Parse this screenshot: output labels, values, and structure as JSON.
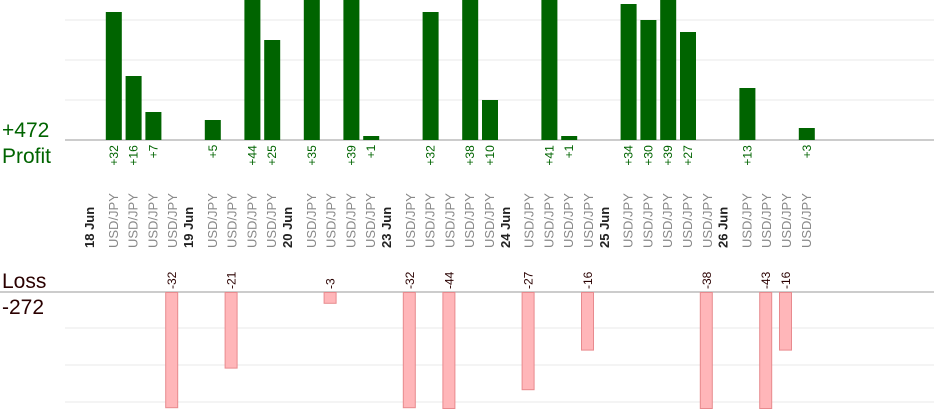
{
  "profit_panel": {
    "total": "+472",
    "label": "Profit"
  },
  "loss_panel": {
    "label": "Loss",
    "total": "-272"
  },
  "colors": {
    "profit_bar": "#006400",
    "profit_text": "#006400",
    "loss_bar_fill": "#ffb6b9",
    "loss_bar_stroke": "#e88a8e",
    "loss_text": "#2a0000",
    "date_text": "#222222",
    "pair_text": "#888888",
    "grid": "#e8e8e8",
    "baseline": "#999999"
  },
  "chart_data": {
    "type": "bar",
    "description_free": true,
    "profit_scale_max": 35,
    "loss_scale_max": 32,
    "groups": [
      {
        "date": "18 Jun",
        "trades": [
          {
            "pair": "USD/JPY",
            "profit": "+32",
            "profit_value": 32
          },
          {
            "pair": "USD/JPY",
            "profit": "+16",
            "profit_value": 16
          },
          {
            "pair": "USD/JPY",
            "profit": "+7",
            "profit_value": 7
          },
          {
            "pair": "USD/JPY",
            "loss": "-32",
            "loss_value": 32
          }
        ]
      },
      {
        "date": "19 Jun",
        "trades": [
          {
            "pair": "USD/JPY",
            "profit": "+5",
            "profit_value": 5
          },
          {
            "pair": "USD/JPY",
            "loss": "-21",
            "loss_value": 21
          },
          {
            "pair": "USD/JPY",
            "profit": "+44",
            "profit_value": 44
          },
          {
            "pair": "USD/JPY",
            "profit": "+25",
            "profit_value": 25
          }
        ]
      },
      {
        "date": "20 Jun",
        "trades": [
          {
            "pair": "USD/JPY",
            "profit": "+35",
            "profit_value": 35
          },
          {
            "pair": "USD/JPY",
            "loss": "-3",
            "loss_value": 3
          },
          {
            "pair": "USD/JPY",
            "profit": "+39",
            "profit_value": 39
          },
          {
            "pair": "USD/JPY",
            "profit": "+1",
            "profit_value": 1
          }
        ]
      },
      {
        "date": "23 Jun",
        "trades": [
          {
            "pair": "USD/JPY",
            "loss": "-32",
            "loss_value": 32
          },
          {
            "pair": "USD/JPY",
            "profit": "+32",
            "profit_value": 32
          },
          {
            "pair": "USD/JPY",
            "loss": "-44",
            "loss_value": 44
          },
          {
            "pair": "USD/JPY",
            "profit": "+38",
            "profit_value": 38
          },
          {
            "pair": "USD/JPY",
            "profit": "+10",
            "profit_value": 10
          }
        ]
      },
      {
        "date": "24 Jun",
        "trades": [
          {
            "pair": "USD/JPY",
            "loss": "-27",
            "loss_value": 27
          },
          {
            "pair": "USD/JPY",
            "profit": "+41",
            "profit_value": 41
          },
          {
            "pair": "USD/JPY",
            "profit": "+1",
            "profit_value": 1
          },
          {
            "pair": "USD/JPY",
            "loss": "-16",
            "loss_value": 16
          }
        ]
      },
      {
        "date": "25 Jun",
        "trades": [
          {
            "pair": "USD/JPY",
            "profit": "+34",
            "profit_value": 34
          },
          {
            "pair": "USD/JPY",
            "profit": "+30",
            "profit_value": 30
          },
          {
            "pair": "USD/JPY",
            "profit": "+39",
            "profit_value": 39
          },
          {
            "pair": "USD/JPY",
            "profit": "+27",
            "profit_value": 27
          },
          {
            "pair": "USD/JPY",
            "loss": "-38",
            "loss_value": 38
          }
        ]
      },
      {
        "date": "26 Jun",
        "trades": [
          {
            "pair": "USD/JPY",
            "profit": "+13",
            "profit_value": 13
          },
          {
            "pair": "USD/JPY",
            "loss": "-43",
            "loss_value": 43
          },
          {
            "pair": "USD/JPY",
            "loss": "-16",
            "loss_value": 16
          },
          {
            "pair": "USD/JPY",
            "profit": "+3",
            "profit_value": 3
          }
        ]
      }
    ]
  }
}
